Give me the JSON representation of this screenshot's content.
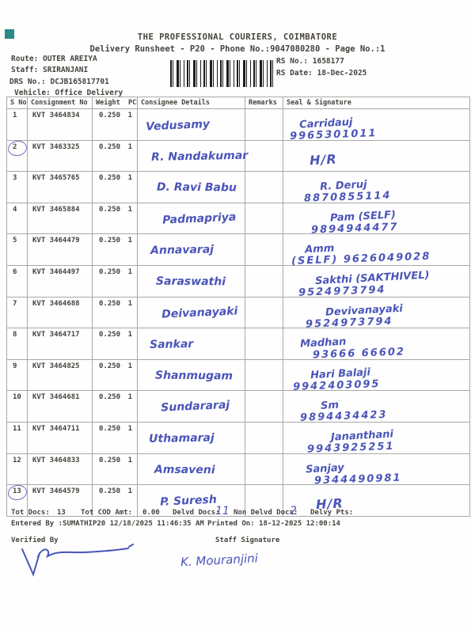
{
  "colors": {
    "ink": "#4a55b8",
    "print": "#47433d",
    "teal_mark": "#2a8a87"
  },
  "header": {
    "title": "THE PROFESSIONAL COURIERS, COIMBATORE",
    "subtitle": "Delivery Runsheet - P20 - Phone No.:9047080280 - Page No.:1",
    "route": "Route: OUTER AREIYA",
    "staff": "Staff: SRIRANJANI",
    "drs": "DRS No.: DCJB165817701",
    "vehicle": "Vehicle: Office Delivery",
    "rs_no": "RS No.: 1658177",
    "rs_date": "RS Date: 18-Dec-2025",
    "barcode": "barcode-image"
  },
  "table": {
    "headers": [
      "S No",
      "Consignment No",
      "Weight  PCS",
      "Consignee Details",
      "Remarks",
      "Seal & Signature"
    ],
    "rows": [
      {
        "sno": "1",
        "consignment": "KVT 3464834",
        "weight": "0.250",
        "pcs": "1",
        "consignee": "Vedusamy",
        "sig1": "Carridauj",
        "sig2": "9965301011",
        "circled": false
      },
      {
        "sno": "2",
        "consignment": "KVT 3463325",
        "weight": "0.250",
        "pcs": "1",
        "consignee": "R. Nandakumar",
        "sig1": "H/R",
        "sig2": "",
        "circled": true
      },
      {
        "sno": "3",
        "consignment": "KVT 3465765",
        "weight": "0.250",
        "pcs": "1",
        "consignee": "D. Ravi Babu",
        "sig1": "R. Deruj",
        "sig2": "8870855114",
        "circled": false
      },
      {
        "sno": "4",
        "consignment": "KVT 3465884",
        "weight": "0.250",
        "pcs": "1",
        "consignee": "Padmapriya",
        "sig1": "Pam  (SELF)",
        "sig2": "9894944477",
        "circled": false
      },
      {
        "sno": "5",
        "consignment": "KVT 3464479",
        "weight": "0.250",
        "pcs": "1",
        "consignee": "Annavaraj",
        "sig1": "Amm",
        "sig2": "(SELF) 9626049028",
        "circled": false
      },
      {
        "sno": "6",
        "consignment": "KVT 3464497",
        "weight": "0.250",
        "pcs": "1",
        "consignee": "Saraswathi",
        "sig1": "Sakthi  (SAKTHIVEL)",
        "sig2": "9524973794",
        "circled": false
      },
      {
        "sno": "7",
        "consignment": "KVT 3464688",
        "weight": "0.250",
        "pcs": "1",
        "consignee": "Deivanayaki",
        "sig1": "Devivanayaki",
        "sig2": "9524973794",
        "circled": false
      },
      {
        "sno": "8",
        "consignment": "KVT 3464717",
        "weight": "0.250",
        "pcs": "1",
        "consignee": "Sankar",
        "sig1": "Madhan",
        "sig2": "93666 66602",
        "circled": false
      },
      {
        "sno": "9",
        "consignment": "KVT 3464825",
        "weight": "0.250",
        "pcs": "1",
        "consignee": "Shanmugam",
        "sig1": "Hari Balaji",
        "sig2": "9942403095",
        "circled": false
      },
      {
        "sno": "10",
        "consignment": "KVT 3464681",
        "weight": "0.250",
        "pcs": "1",
        "consignee": "Sundararaj",
        "sig1": "Sm",
        "sig2": "9894434423",
        "circled": false
      },
      {
        "sno": "11",
        "consignment": "KVT 3464711",
        "weight": "0.250",
        "pcs": "1",
        "consignee": "Uthamaraj",
        "sig1": "Jananthani",
        "sig2": "9943925251",
        "circled": false
      },
      {
        "sno": "12",
        "consignment": "KVT 3464833",
        "weight": "0.250",
        "pcs": "1",
        "consignee": "Amsaveni",
        "sig1": "Sanjay",
        "sig2": "9344490981",
        "circled": false
      },
      {
        "sno": "13",
        "consignment": "KVT 3464579",
        "weight": "0.250",
        "pcs": "1",
        "consignee": "P. Suresh",
        "sig1": "H/R",
        "sig2": "",
        "circled": true
      }
    ]
  },
  "footer": {
    "tot_docs_label": "Tot Docs:",
    "tot_docs": "13",
    "tot_cod_label": "Tot COD Amt:",
    "tot_cod": "0.00",
    "delvd_label": "Delvd Docs:",
    "delvd_handwritten": "11",
    "non_delvd_label": "Non Delvd Docs:",
    "non_delvd_handwritten": "2",
    "delvy_label": "Delvy Pts:",
    "entered": "Entered By :SUMATHIP20 12/18/2025 11:46:35 AM",
    "printed": "Printed On: 18-12-2025 12:00:14",
    "verified_label": "Verified By",
    "staff_sig_label": "Staff Signature",
    "staff_sig_handwritten": "K. Mouranjini"
  }
}
